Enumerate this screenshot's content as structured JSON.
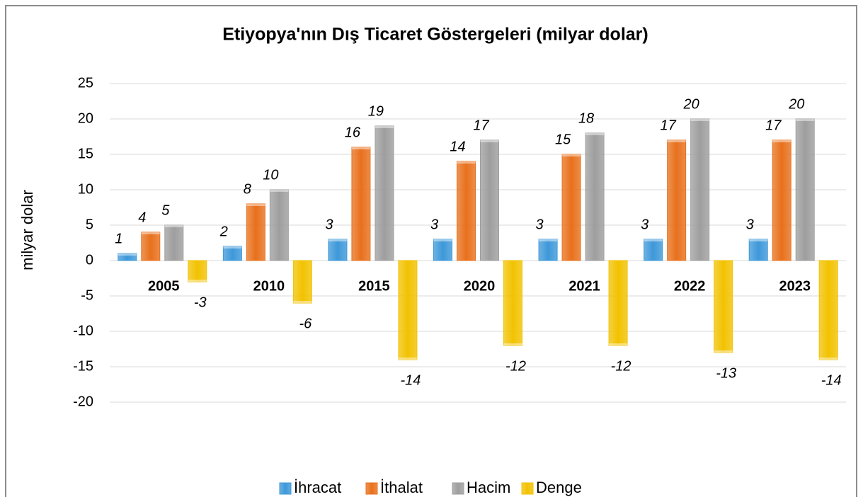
{
  "chart_data": {
    "type": "bar",
    "title": "Etiyopya'nın Dış Ticaret Göstergeleri (milyar dolar)",
    "y_label": "milyar dolar",
    "categories": [
      "2005",
      "2010",
      "2015",
      "2020",
      "2021",
      "2022",
      "2023"
    ],
    "series": [
      {
        "name": "İhracat",
        "color": "#3d98d9",
        "values": [
          1,
          2,
          3,
          3,
          3,
          3,
          3
        ]
      },
      {
        "name": "İthalat",
        "color": "#e8701c",
        "values": [
          4,
          8,
          16,
          14,
          15,
          17,
          17
        ]
      },
      {
        "name": "Hacim",
        "color": "#9e9e9e",
        "values": [
          5,
          10,
          19,
          17,
          18,
          20,
          20
        ]
      },
      {
        "name": "Denge",
        "color": "#f2c200",
        "values": [
          -3,
          -6,
          -14,
          -12,
          -12,
          -13,
          -14
        ]
      }
    ],
    "ylim": [
      -20,
      25
    ],
    "yticks": [
      -20,
      -15,
      -10,
      -5,
      0,
      5,
      10,
      15,
      20,
      25
    ],
    "grid": true,
    "legend": "bottom"
  }
}
